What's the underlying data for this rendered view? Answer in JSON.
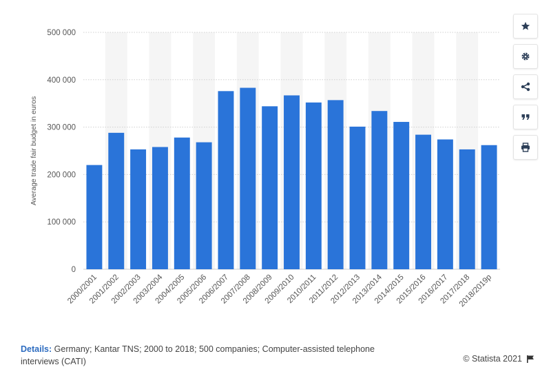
{
  "chart_data": {
    "type": "bar",
    "ylabel": "Average trade fair budget in euros",
    "xlabel": "",
    "ylim": [
      0,
      500000
    ],
    "yticks": [
      0,
      100000,
      200000,
      300000,
      400000,
      500000
    ],
    "ytick_labels": [
      "0",
      "100 000",
      "200 000",
      "300 000",
      "400 000",
      "500 000"
    ],
    "grid": true,
    "bar_color": "#2a74d9",
    "categories": [
      "2000/2001",
      "2001/2002",
      "2002/2003",
      "2003/2004",
      "2004/2005",
      "2005/2006",
      "2006/2007",
      "2007/2008",
      "2008/2009",
      "2009/2010",
      "2010/2011",
      "2011/2012",
      "2012/2013",
      "2013/2014",
      "2014/2015",
      "2015/2016",
      "2016/2017",
      "2017/2018",
      "2018/2019p"
    ],
    "values": [
      220000,
      288000,
      253000,
      258000,
      278000,
      268000,
      376000,
      383000,
      344000,
      367000,
      352000,
      357000,
      301000,
      334000,
      311000,
      284000,
      274000,
      253000,
      262000
    ]
  },
  "toolbar": {
    "buttons": [
      "star-icon",
      "gear-icon",
      "share-icon",
      "quote-icon",
      "print-icon"
    ]
  },
  "footer": {
    "details_label": "Details:",
    "details_text": "Germany; Kantar TNS; 2000 to 2018; 500 companies; Computer-assisted telephone interviews (CATI)",
    "credit": "© Statista 2021"
  },
  "colors": {
    "accent": "#2d6cc0",
    "icon": "#2c3e57"
  }
}
